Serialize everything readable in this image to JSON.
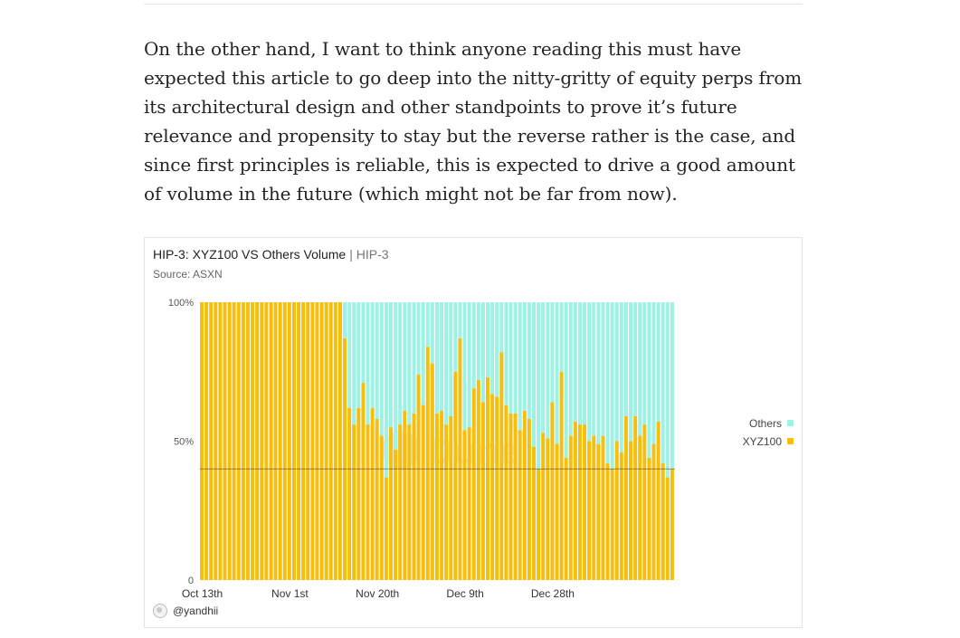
{
  "article": {
    "paragraph": "On the other hand, I want to think anyone reading this must have expected this article to go deep into the nitty-gritty of equity perps from its architectural design and other standpoints to prove it’s future relevance and propensity to stay but the reverse rather is the case, and since first principles is reliable, this is expected to drive a good amount of volume in the future (which might not be far from now)."
  },
  "figure": {
    "title": "HIP-3: XYZ100 VS Others Volume",
    "tag": "| HIP-3",
    "source": "Source: ASXN",
    "author": "@yandhii",
    "watermark": "Dune"
  },
  "colors": {
    "xyz100": "#F6BE0F",
    "others": "#9EF2E4",
    "axis_text": "#555555",
    "gridline": "#888888"
  },
  "chart_data": {
    "type": "bar",
    "stacked": true,
    "normalized": true,
    "title": "HIP-3: XYZ100 VS Others Volume",
    "xlabel": "",
    "ylabel": "",
    "ylim": [
      0,
      100
    ],
    "y_ticks": [
      {
        "value": 0,
        "label": "0"
      },
      {
        "value": 50,
        "label": "50%"
      },
      {
        "value": 100,
        "label": "100%"
      }
    ],
    "x_ticks": [
      {
        "index": 0,
        "label": "Oct 13th"
      },
      {
        "index": 19,
        "label": "Nov 1st"
      },
      {
        "index": 38,
        "label": "Nov 20th"
      },
      {
        "index": 57,
        "label": "Dec 9th"
      },
      {
        "index": 76,
        "label": "Dec 28th"
      }
    ],
    "start_date": "Oct 13th",
    "legend_position": "right",
    "reference_line": 40,
    "series": [
      {
        "name": "XYZ100",
        "values": [
          100,
          100,
          100,
          100,
          100,
          100,
          100,
          100,
          100,
          100,
          100,
          100,
          100,
          100,
          100,
          100,
          100,
          100,
          100,
          100,
          100,
          100,
          100,
          100,
          100,
          100,
          100,
          100,
          100,
          100,
          100,
          87,
          62,
          56,
          62,
          71,
          56,
          62,
          58,
          52,
          37,
          55,
          47,
          56,
          61,
          56,
          60,
          74,
          63,
          84,
          78,
          60,
          61,
          56,
          59,
          75,
          87,
          54,
          55,
          69,
          72,
          64,
          73,
          67,
          66,
          82,
          63,
          60,
          60,
          54,
          61,
          58,
          48,
          40,
          53,
          51,
          64,
          49,
          75,
          44,
          52,
          57,
          56,
          56,
          50,
          52,
          49,
          52,
          42,
          40,
          50,
          46,
          59,
          50,
          59,
          52,
          56,
          44,
          49,
          57,
          42,
          37,
          40
        ]
      },
      {
        "name": "Others",
        "values": [
          0,
          0,
          0,
          0,
          0,
          0,
          0,
          0,
          0,
          0,
          0,
          0,
          0,
          0,
          0,
          0,
          0,
          0,
          0,
          0,
          0,
          0,
          0,
          0,
          0,
          0,
          0,
          0,
          0,
          0,
          0,
          13,
          38,
          44,
          38,
          29,
          44,
          38,
          42,
          48,
          63,
          45,
          53,
          44,
          39,
          44,
          40,
          26,
          37,
          16,
          22,
          40,
          39,
          44,
          41,
          25,
          13,
          46,
          45,
          31,
          28,
          36,
          27,
          33,
          34,
          18,
          37,
          40,
          40,
          46,
          39,
          42,
          52,
          60,
          47,
          49,
          36,
          51,
          25,
          56,
          48,
          43,
          44,
          44,
          50,
          48,
          51,
          48,
          58,
          60,
          50,
          54,
          41,
          50,
          41,
          48,
          44,
          56,
          51,
          43,
          58,
          63,
          60
        ]
      }
    ]
  }
}
